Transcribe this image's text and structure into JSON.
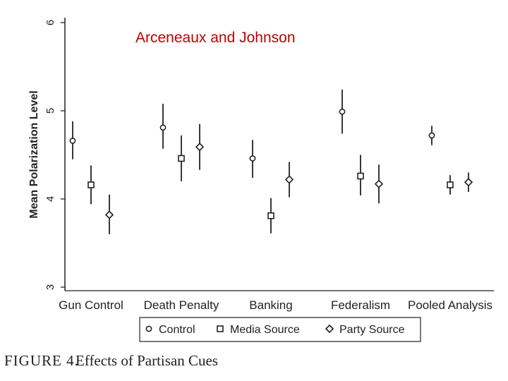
{
  "overlay_title": "Arceneaux and Johnson",
  "caption": {
    "figure_label": "FIGURE 4.",
    "text": "Effects of Partisan Cues"
  },
  "colors": {
    "title": "#c00000",
    "marks": "#222222"
  },
  "chart_data": {
    "type": "scatter",
    "ylabel": "Mean Polarization Level",
    "xlabel": "",
    "ylim": [
      3,
      6
    ],
    "yticks": [
      3,
      4,
      5,
      6
    ],
    "grid": false,
    "categories": [
      "Gun Control",
      "Death Penalty",
      "Banking",
      "Federalism",
      "Pooled Analysis"
    ],
    "legend_position": "bottom",
    "series": [
      {
        "name": "Control",
        "marker": "circle",
        "points": [
          {
            "category": "Gun Control",
            "y": 4.66,
            "lo": 4.45,
            "hi": 4.88
          },
          {
            "category": "Death Penalty",
            "y": 4.81,
            "lo": 4.57,
            "hi": 5.08
          },
          {
            "category": "Banking",
            "y": 4.46,
            "lo": 4.24,
            "hi": 4.67
          },
          {
            "category": "Federalism",
            "y": 4.99,
            "lo": 4.74,
            "hi": 5.24
          },
          {
            "category": "Pooled Analysis",
            "y": 4.72,
            "lo": 4.61,
            "hi": 4.83
          }
        ]
      },
      {
        "name": "Media Source",
        "marker": "square",
        "points": [
          {
            "category": "Gun Control",
            "y": 4.16,
            "lo": 3.94,
            "hi": 4.38
          },
          {
            "category": "Death Penalty",
            "y": 4.46,
            "lo": 4.2,
            "hi": 4.72
          },
          {
            "category": "Banking",
            "y": 3.81,
            "lo": 3.61,
            "hi": 4.01
          },
          {
            "category": "Federalism",
            "y": 4.26,
            "lo": 4.04,
            "hi": 4.5
          },
          {
            "category": "Pooled Analysis",
            "y": 4.16,
            "lo": 4.05,
            "hi": 4.27
          }
        ]
      },
      {
        "name": "Party Source",
        "marker": "diamond",
        "points": [
          {
            "category": "Gun Control",
            "y": 3.82,
            "lo": 3.6,
            "hi": 4.05
          },
          {
            "category": "Death Penalty",
            "y": 4.59,
            "lo": 4.33,
            "hi": 4.85
          },
          {
            "category": "Banking",
            "y": 4.22,
            "lo": 4.02,
            "hi": 4.42
          },
          {
            "category": "Federalism",
            "y": 4.17,
            "lo": 3.95,
            "hi": 4.39
          },
          {
            "category": "Pooled Analysis",
            "y": 4.19,
            "lo": 4.08,
            "hi": 4.3
          }
        ]
      }
    ]
  }
}
